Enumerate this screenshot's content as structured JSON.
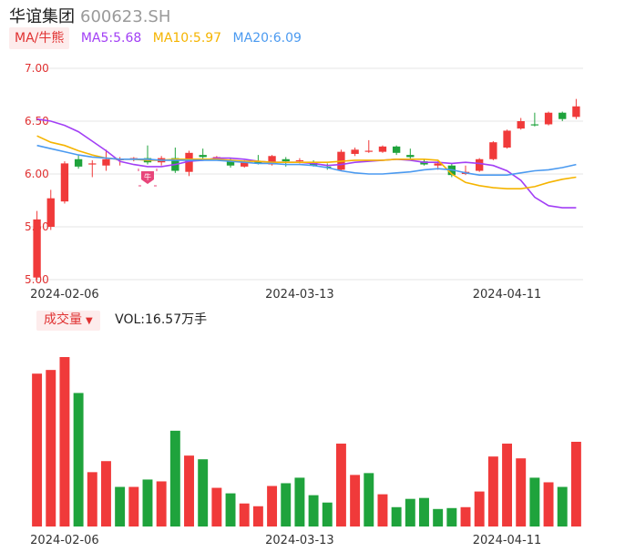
{
  "header": {
    "name": "华谊集团",
    "code": "600623.SH"
  },
  "ma_legend": {
    "tag": "MA/牛熊",
    "items": [
      {
        "label": "MA5:5.68",
        "color": "#a23ff5"
      },
      {
        "label": "MA10:5.97",
        "color": "#f5b400"
      },
      {
        "label": "MA20:6.09",
        "color": "#4b9af0"
      }
    ]
  },
  "volume_legend": {
    "tag": "成交量",
    "value": "VOL:16.57万手"
  },
  "colors": {
    "up": "#f03a3a",
    "down": "#1fa33c",
    "grid": "#e6e6e6",
    "badge": "#e8457a"
  },
  "chart_data": [
    {
      "type": "candlestick",
      "title": "",
      "y_ticks": [
        "7.00",
        "6.50",
        "6.00",
        "5.50",
        "5.00"
      ],
      "ylim": [
        5.0,
        7.0
      ],
      "x_tick_labels": [
        "2024-02-06",
        "2024-03-13",
        "2024-04-11"
      ],
      "x_tick_index": [
        2,
        19,
        34
      ],
      "grid": true,
      "candles": [
        {
          "o": 5.02,
          "c": 5.57,
          "h": 5.65,
          "l": 5.0
        },
        {
          "o": 5.5,
          "c": 5.77,
          "h": 5.85,
          "l": 5.47
        },
        {
          "o": 5.74,
          "c": 6.1,
          "h": 6.12,
          "l": 5.72
        },
        {
          "o": 6.14,
          "c": 6.07,
          "h": 6.18,
          "l": 6.05
        },
        {
          "o": 6.09,
          "c": 6.1,
          "h": 6.13,
          "l": 5.97
        },
        {
          "o": 6.08,
          "c": 6.14,
          "h": 6.23,
          "l": 6.03
        },
        {
          "o": 6.14,
          "c": 6.14,
          "h": 6.16,
          "l": 6.08
        },
        {
          "o": 6.14,
          "c": 6.15,
          "h": 6.16,
          "l": 6.12
        },
        {
          "o": 6.15,
          "c": 6.11,
          "h": 6.27,
          "l": 6.09
        },
        {
          "o": 6.11,
          "c": 6.15,
          "h": 6.17,
          "l": 6.08
        },
        {
          "o": 6.15,
          "c": 6.03,
          "h": 6.25,
          "l": 6.01
        },
        {
          "o": 6.02,
          "c": 6.2,
          "h": 6.22,
          "l": 5.98
        },
        {
          "o": 6.18,
          "c": 6.16,
          "h": 6.24,
          "l": 6.14
        },
        {
          "o": 6.16,
          "c": 6.16,
          "h": 6.17,
          "l": 6.14
        },
        {
          "o": 6.13,
          "c": 6.08,
          "h": 6.15,
          "l": 6.06
        },
        {
          "o": 6.07,
          "c": 6.11,
          "h": 6.13,
          "l": 6.06
        },
        {
          "o": 6.12,
          "c": 6.1,
          "h": 6.18,
          "l": 6.09
        },
        {
          "o": 6.09,
          "c": 6.17,
          "h": 6.18,
          "l": 6.08
        },
        {
          "o": 6.14,
          "c": 6.12,
          "h": 6.16,
          "l": 6.07
        },
        {
          "o": 6.12,
          "c": 6.13,
          "h": 6.15,
          "l": 6.1
        },
        {
          "o": 6.11,
          "c": 6.08,
          "h": 6.13,
          "l": 6.07
        },
        {
          "o": 6.07,
          "c": 6.06,
          "h": 6.1,
          "l": 6.04
        },
        {
          "o": 6.04,
          "c": 6.21,
          "h": 6.23,
          "l": 6.03
        },
        {
          "o": 6.19,
          "c": 6.23,
          "h": 6.25,
          "l": 6.17
        },
        {
          "o": 6.21,
          "c": 6.22,
          "h": 6.32,
          "l": 6.2
        },
        {
          "o": 6.21,
          "c": 6.26,
          "h": 6.27,
          "l": 6.2
        },
        {
          "o": 6.26,
          "c": 6.2,
          "h": 6.27,
          "l": 6.18
        },
        {
          "o": 6.18,
          "c": 6.16,
          "h": 6.24,
          "l": 6.14
        },
        {
          "o": 6.12,
          "c": 6.09,
          "h": 6.14,
          "l": 6.08
        },
        {
          "o": 6.08,
          "c": 6.1,
          "h": 6.12,
          "l": 6.04
        },
        {
          "o": 6.08,
          "c": 5.99,
          "h": 6.1,
          "l": 5.97
        },
        {
          "o": 6.0,
          "c": 6.02,
          "h": 6.08,
          "l": 5.99
        },
        {
          "o": 6.03,
          "c": 6.14,
          "h": 6.15,
          "l": 6.02
        },
        {
          "o": 6.14,
          "c": 6.3,
          "h": 6.31,
          "l": 6.13
        },
        {
          "o": 6.25,
          "c": 6.41,
          "h": 6.42,
          "l": 6.24
        },
        {
          "o": 6.43,
          "c": 6.5,
          "h": 6.53,
          "l": 6.42
        },
        {
          "o": 6.47,
          "c": 6.46,
          "h": 6.58,
          "l": 6.45
        },
        {
          "o": 6.47,
          "c": 6.58,
          "h": 6.59,
          "l": 6.46
        },
        {
          "o": 6.58,
          "c": 6.52,
          "h": 6.59,
          "l": 6.5
        },
        {
          "o": 6.54,
          "c": 6.64,
          "h": 6.71,
          "l": 6.52
        }
      ],
      "series": [
        {
          "name": "MA5",
          "values": [
            6.52,
            6.5,
            6.46,
            6.4,
            6.31,
            6.22,
            6.12,
            6.09,
            6.07,
            6.07,
            6.09,
            6.12,
            6.13,
            6.15,
            6.15,
            6.14,
            6.12,
            6.11,
            6.11,
            6.11,
            6.1,
            6.08,
            6.09,
            6.11,
            6.12,
            6.13,
            6.14,
            6.13,
            6.11,
            6.11,
            6.1,
            6.11,
            6.1,
            6.08,
            6.03,
            5.94,
            5.78,
            5.7,
            5.68,
            5.68
          ]
        },
        {
          "name": "MA10",
          "values": [
            6.36,
            6.3,
            6.27,
            6.22,
            6.18,
            6.15,
            6.14,
            6.14,
            6.13,
            6.13,
            6.14,
            6.14,
            6.14,
            6.14,
            6.13,
            6.12,
            6.12,
            6.11,
            6.11,
            6.11,
            6.11,
            6.11,
            6.12,
            6.13,
            6.13,
            6.13,
            6.14,
            6.14,
            6.14,
            6.13,
            6.0,
            5.92,
            5.89,
            5.87,
            5.86,
            5.86,
            5.88,
            5.92,
            5.95,
            5.97
          ]
        },
        {
          "name": "MA20",
          "values": [
            6.27,
            6.24,
            6.21,
            6.18,
            6.16,
            6.15,
            6.14,
            6.14,
            6.14,
            6.13,
            6.13,
            6.13,
            6.13,
            6.13,
            6.12,
            6.11,
            6.1,
            6.1,
            6.09,
            6.09,
            6.08,
            6.06,
            6.03,
            6.01,
            6.0,
            6.0,
            6.01,
            6.02,
            6.04,
            6.05,
            6.04,
            6.01,
            5.99,
            5.99,
            5.99,
            6.01,
            6.03,
            6.04,
            6.06,
            6.09
          ]
        }
      ],
      "annotations": [
        {
          "type": "badge",
          "text": "牛",
          "index": 8
        }
      ]
    },
    {
      "type": "bar",
      "title": "",
      "x_tick_labels": [
        "2024-02-06",
        "2024-03-13",
        "2024-04-11"
      ],
      "x_tick_index": [
        2,
        19,
        34
      ],
      "volumes": [
        166,
        170,
        184,
        145,
        59,
        71,
        43,
        43,
        51,
        49,
        104,
        77,
        73,
        42,
        36,
        25,
        22,
        44,
        47,
        53,
        34,
        26,
        90,
        56,
        58,
        35,
        21,
        30,
        31,
        19,
        20,
        21,
        38,
        76,
        90,
        74,
        53,
        48,
        43,
        92
      ],
      "colors_up": [
        true,
        true,
        true,
        false,
        true,
        true,
        false,
        true,
        false,
        true,
        false,
        true,
        false,
        true,
        false,
        true,
        true,
        true,
        false,
        false,
        false,
        false,
        true,
        true,
        false,
        true,
        false,
        false,
        false,
        false,
        false,
        true,
        true,
        true,
        true,
        true,
        false,
        true,
        false,
        true
      ]
    }
  ]
}
